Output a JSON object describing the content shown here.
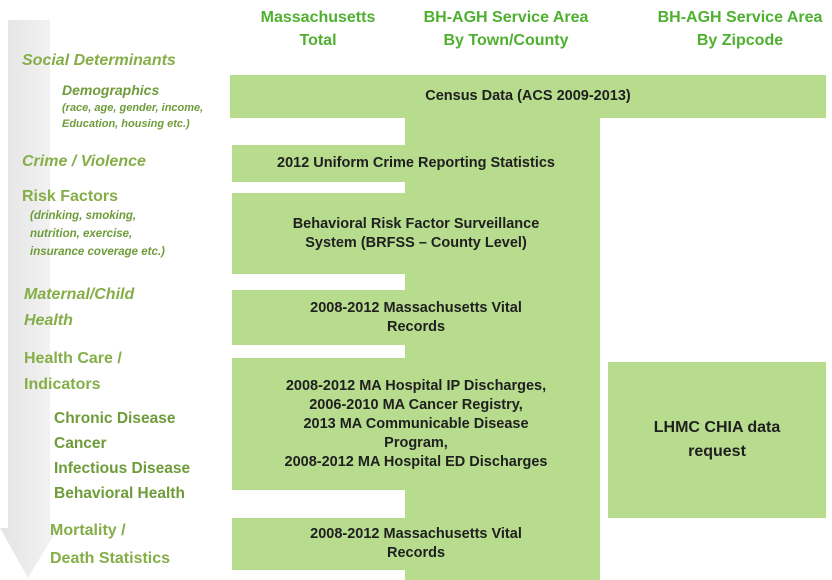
{
  "headers": [
    [
      "Massachusetts",
      "Total"
    ],
    [
      "BH-AGH Service Area",
      "By Town/County"
    ],
    [
      "BH-AGH Service Area",
      "By Zipcode"
    ]
  ],
  "labels": [
    "Social Determinants",
    "Demographics",
    "(race, age, gender, income,",
    "Education, housing etc.)",
    "Crime / Violence",
    "Risk Factors",
    "(drinking, smoking,",
    "nutrition, exercise,",
    "insurance coverage etc.)",
    "Maternal/Child",
    "Health",
    "Health Care /",
    "Indicators",
    "Chronic Disease",
    "Cancer",
    "Infectious Disease",
    "Behavioral Health",
    "Mortality /",
    "Death Statistics"
  ],
  "boxes": [
    [
      "Census Data  (ACS 2009-2013)"
    ],
    [
      "2012 Uniform Crime Reporting Statistics"
    ],
    [
      "Behavioral Risk Factor Surveillance",
      "System (BRFSS – County Level)"
    ],
    [
      "2008-2012 Massachusetts Vital",
      "Records"
    ],
    [
      "2008-2012 MA Hospital IP Discharges,",
      "2006-2010 MA Cancer Registry,",
      "2013 MA Communicable Disease",
      "Program,",
      "2008-2012 MA Hospital ED Discharges"
    ],
    [
      "LHMC CHIA data",
      "request"
    ],
    [
      "2008-2012 Massachusetts Vital",
      "Records"
    ]
  ]
}
